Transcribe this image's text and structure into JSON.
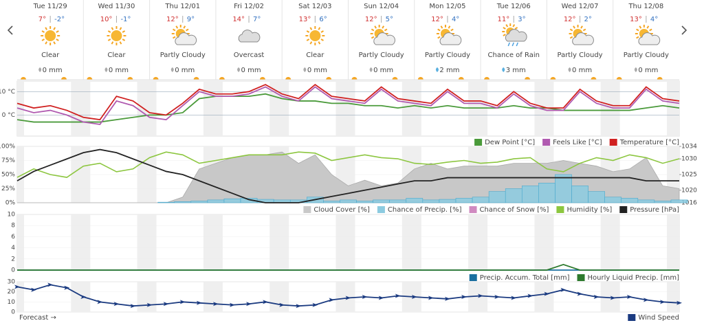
{
  "days": [
    {
      "date": "Tue 11/29",
      "high": "7°",
      "low": "-2°",
      "condition": "Clear",
      "precip": "0 mm"
    },
    {
      "date": "Wed 11/30",
      "high": "10°",
      "low": "-1°",
      "condition": "Clear",
      "precip": "0 mm"
    },
    {
      "date": "Thu 12/01",
      "high": "12°",
      "low": "9°",
      "condition": "Partly Cloudy",
      "precip": "0 mm"
    },
    {
      "date": "Fri 12/02",
      "high": "14°",
      "low": "7°",
      "condition": "Overcast",
      "precip": "0 mm"
    },
    {
      "date": "Sat 12/03",
      "high": "13°",
      "low": "6°",
      "condition": "Clear",
      "precip": "0 mm"
    },
    {
      "date": "Sun 12/04",
      "high": "12°",
      "low": "5°",
      "condition": "Partly Cloudy",
      "precip": "0 mm"
    },
    {
      "date": "Mon 12/05",
      "high": "12°",
      "low": "4°",
      "condition": "Partly Cloudy",
      "precip": "2 mm"
    },
    {
      "date": "Tue 12/06",
      "high": "11°",
      "low": "3°",
      "condition": "Chance of Rain",
      "precip": "3 mm"
    },
    {
      "date": "Wed 12/07",
      "high": "12°",
      "low": "2°",
      "condition": "Partly Cloudy",
      "precip": "0 mm"
    },
    {
      "date": "Thu 12/08",
      "high": "13°",
      "low": "4°",
      "condition": "Partly Cloudy",
      "precip": "0 mm"
    }
  ],
  "footer": "Forecast →",
  "chart_data": [
    {
      "type": "line",
      "ylim": [
        -9,
        14.5
      ],
      "yticks": [
        {
          "value": 10,
          "label": "10 °C"
        },
        {
          "value": 0,
          "label": "0 °C"
        }
      ],
      "grid": true,
      "series": [
        {
          "name": "Dew Point [°C]",
          "color": "#4a9a3a",
          "values": [
            -2,
            -3,
            -3,
            -3,
            -3,
            -3,
            -2,
            -1,
            0,
            0,
            1,
            7,
            8,
            8,
            8,
            9,
            7,
            6,
            6,
            5,
            5,
            4,
            4,
            3,
            4,
            3,
            4,
            3,
            3,
            3,
            4,
            3,
            3,
            2,
            2,
            2,
            2,
            2,
            3,
            4,
            3
          ]
        },
        {
          "name": "Feels Like [°C]",
          "color": "#b05ab0",
          "values": [
            3,
            1,
            2,
            0,
            -3,
            -4,
            6,
            4,
            -1,
            -2,
            4,
            10,
            8,
            8,
            9,
            12,
            8,
            6,
            12,
            7,
            6,
            5,
            11,
            6,
            5,
            4,
            10,
            5,
            5,
            3,
            9,
            4,
            2,
            2,
            10,
            5,
            3,
            3,
            11,
            6,
            5
          ]
        },
        {
          "name": "Temperature [°C]",
          "color": "#d02020",
          "values": [
            5,
            3,
            4,
            2,
            -1,
            -2,
            8,
            6,
            1,
            0,
            5,
            11,
            9,
            9,
            10,
            13,
            9,
            7,
            13,
            8,
            7,
            6,
            12,
            7,
            6,
            5,
            11,
            6,
            6,
            4,
            10,
            5,
            3,
            3,
            11,
            6,
            4,
            4,
            12,
            7,
            6
          ]
        }
      ]
    },
    {
      "type": "line",
      "ylim": [
        0,
        100
      ],
      "yticks": [
        {
          "value": 100,
          "label": "100%"
        },
        {
          "value": 75,
          "label": "75%"
        },
        {
          "value": 50,
          "label": "50%"
        },
        {
          "value": 25,
          "label": "25%"
        },
        {
          "value": 0,
          "label": "0%"
        }
      ],
      "y2lim": [
        1016,
        1034
      ],
      "y2ticks": [
        1034,
        1030,
        1025,
        1020,
        1016
      ],
      "series": [
        {
          "name": "Cloud Cover [%]",
          "type": "area",
          "color": "#c8c8c8",
          "values": [
            0,
            0,
            0,
            0,
            0,
            0,
            0,
            0,
            0,
            0,
            10,
            60,
            70,
            80,
            85,
            85,
            90,
            70,
            85,
            50,
            30,
            40,
            30,
            35,
            60,
            70,
            60,
            65,
            65,
            65,
            70,
            70,
            70,
            75,
            70,
            65,
            55,
            60,
            80,
            30,
            25
          ]
        },
        {
          "name": "Chance of Precip. [%]",
          "type": "bar",
          "color": "#8ccbe0",
          "values": [
            0,
            0,
            0,
            0,
            0,
            0,
            0,
            0,
            0,
            1,
            2,
            3,
            5,
            7,
            8,
            6,
            5,
            5,
            10,
            3,
            5,
            3,
            5,
            5,
            8,
            5,
            6,
            8,
            10,
            20,
            25,
            30,
            35,
            50,
            30,
            20,
            10,
            8,
            5,
            3,
            5
          ]
        },
        {
          "name": "Chance of Snow [%]",
          "type": "bar",
          "color": "#d08ac0",
          "values": [
            0,
            0,
            0,
            0,
            0,
            0,
            0,
            0,
            0,
            0,
            0,
            0,
            0,
            0,
            0,
            0,
            0,
            0,
            0,
            0,
            0,
            0,
            0,
            0,
            0,
            0,
            0,
            0,
            0,
            0,
            0,
            0,
            0,
            0,
            0,
            0,
            0,
            0,
            0,
            0,
            0
          ]
        },
        {
          "name": "Humidity [%]",
          "color": "#8cc63f",
          "values": [
            45,
            60,
            50,
            45,
            65,
            70,
            55,
            60,
            80,
            90,
            85,
            70,
            75,
            80,
            85,
            85,
            85,
            90,
            88,
            75,
            80,
            85,
            80,
            78,
            70,
            68,
            72,
            75,
            70,
            72,
            78,
            80,
            60,
            55,
            70,
            80,
            75,
            85,
            80,
            70,
            78
          ]
        },
        {
          "name": "Pressure [hPa]",
          "color": "#222222",
          "axis": "y2",
          "values": [
            1023,
            1026,
            1028,
            1030,
            1032,
            1033,
            1032,
            1030,
            1028,
            1026,
            1025,
            1023,
            1021,
            1019,
            1017,
            1016,
            1016,
            1016,
            1017,
            1018,
            1019,
            1020,
            1021,
            1022,
            1023,
            1023,
            1024,
            1024,
            1024,
            1024,
            1024,
            1024,
            1024,
            1024,
            1024,
            1024,
            1024,
            1024,
            1023,
            1023,
            1023
          ]
        }
      ]
    },
    {
      "type": "line",
      "ylim": [
        0,
        10
      ],
      "yticks": [
        10,
        8,
        6,
        4,
        2,
        0
      ],
      "series": [
        {
          "name": "Precip. Accum. Total [mm]",
          "color": "#1a6fa0",
          "values": [
            0,
            0,
            0,
            0,
            0,
            0,
            0,
            0,
            0,
            0,
            0,
            0,
            0,
            0,
            0,
            0,
            0,
            0,
            0,
            0,
            0,
            0,
            0,
            0,
            0,
            0,
            0,
            0,
            0,
            0,
            0,
            0,
            0,
            0,
            0,
            0,
            0,
            0,
            0,
            0,
            0
          ]
        },
        {
          "name": "Hourly Liquid Precip. [mm]",
          "color": "#2d7a2d",
          "values": [
            0,
            0,
            0,
            0,
            0,
            0,
            0,
            0,
            0,
            0,
            0,
            0,
            0,
            0,
            0,
            0,
            0,
            0,
            0,
            0,
            0,
            0,
            0,
            0,
            0,
            0,
            0,
            0,
            0,
            0,
            0,
            0,
            0,
            1,
            0,
            0,
            0,
            0,
            0,
            0,
            0
          ]
        }
      ]
    },
    {
      "type": "line",
      "ylim": [
        0,
        30
      ],
      "yticks": [
        30,
        20,
        10,
        0
      ],
      "series": [
        {
          "name": "Wind Speed",
          "color": "#1a3a80",
          "values": [
            25,
            22,
            27,
            24,
            15,
            10,
            8,
            6,
            7,
            8,
            10,
            9,
            8,
            7,
            8,
            10,
            7,
            6,
            7,
            12,
            14,
            15,
            14,
            16,
            15,
            14,
            13,
            15,
            16,
            15,
            14,
            16,
            18,
            22,
            18,
            15,
            14,
            15,
            12,
            10,
            9
          ]
        }
      ]
    }
  ]
}
